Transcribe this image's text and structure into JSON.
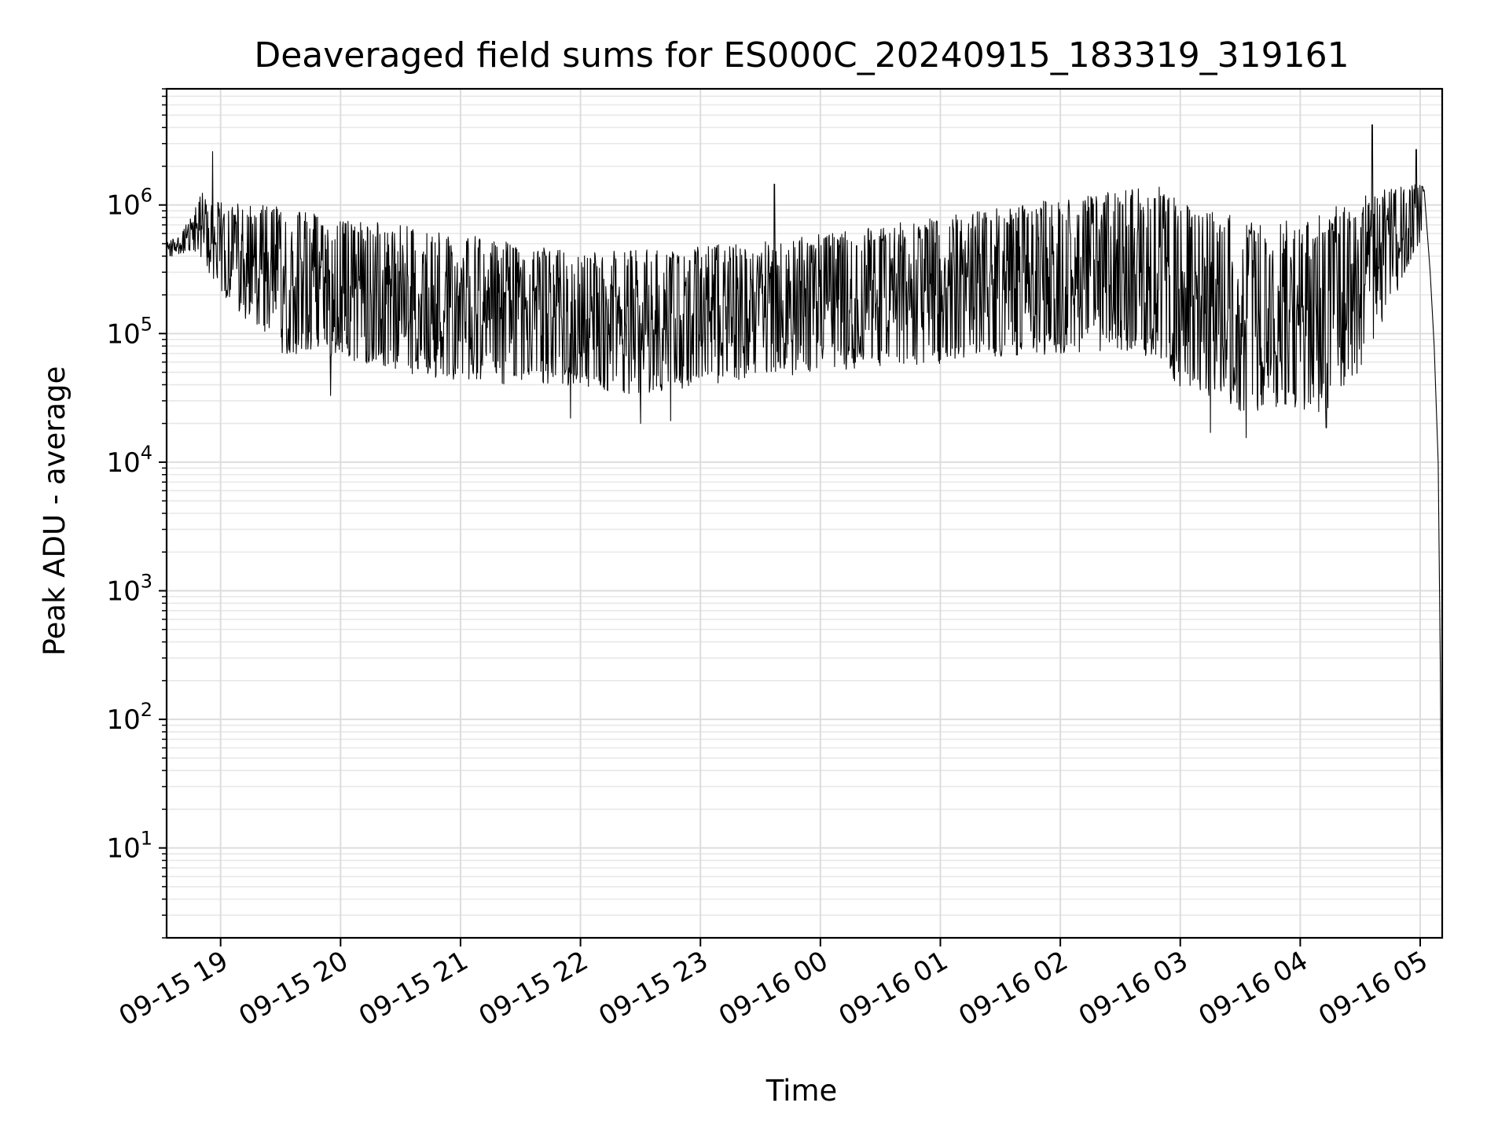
{
  "chart_data": {
    "type": "line",
    "title": "Deaveraged field sums for ES000C_20240915_183319_319161",
    "xlabel": "Time",
    "ylabel": "Peak ADU - average",
    "x_scale": "time",
    "y_scale": "log",
    "xlim": [
      "2024-09-15 18:33",
      "2024-09-16 05:11"
    ],
    "ylim": [
      2,
      8000000
    ],
    "grid": true,
    "line_color": "#000000",
    "x_ticks": [
      {
        "time": "2024-09-15 19:00",
        "label": "09-15 19"
      },
      {
        "time": "2024-09-15 20:00",
        "label": "09-15 20"
      },
      {
        "time": "2024-09-15 21:00",
        "label": "09-15 21"
      },
      {
        "time": "2024-09-15 22:00",
        "label": "09-15 22"
      },
      {
        "time": "2024-09-15 23:00",
        "label": "09-15 23"
      },
      {
        "time": "2024-09-16 00:00",
        "label": "09-16 00"
      },
      {
        "time": "2024-09-16 01:00",
        "label": "09-16 01"
      },
      {
        "time": "2024-09-16 02:00",
        "label": "09-16 02"
      },
      {
        "time": "2024-09-16 03:00",
        "label": "09-16 03"
      },
      {
        "time": "2024-09-16 04:00",
        "label": "09-16 04"
      },
      {
        "time": "2024-09-16 05:00",
        "label": "09-16 05"
      }
    ],
    "y_ticks": [
      {
        "value": 10,
        "base": "10",
        "exp": "1"
      },
      {
        "value": 100,
        "base": "10",
        "exp": "2"
      },
      {
        "value": 1000,
        "base": "10",
        "exp": "3"
      },
      {
        "value": 10000,
        "base": "10",
        "exp": "4"
      },
      {
        "value": 100000,
        "base": "10",
        "exp": "5"
      },
      {
        "value": 1000000,
        "base": "10",
        "exp": "6"
      }
    ],
    "series": [
      {
        "upper_envelope": [
          [
            "2024-09-15 18:33",
            520000
          ],
          [
            "2024-09-15 18:40",
            600000
          ],
          [
            "2024-09-15 18:47",
            900000
          ],
          [
            "2024-09-15 18:50",
            1300000
          ],
          [
            "2024-09-15 19:00",
            1050000
          ],
          [
            "2024-09-15 19:30",
            1000000
          ],
          [
            "2024-09-15 20:00",
            800000
          ],
          [
            "2024-09-15 20:30",
            700000
          ],
          [
            "2024-09-15 21:00",
            600000
          ],
          [
            "2024-09-15 21:30",
            500000
          ],
          [
            "2024-09-15 22:00",
            420000
          ],
          [
            "2024-09-15 22:30",
            450000
          ],
          [
            "2024-09-15 23:00",
            480000
          ],
          [
            "2024-09-15 23:30",
            520000
          ],
          [
            "2024-09-16 00:00",
            600000
          ],
          [
            "2024-09-16 00:30",
            700000
          ],
          [
            "2024-09-16 01:00",
            800000
          ],
          [
            "2024-09-16 01:30",
            950000
          ],
          [
            "2024-09-16 02:00",
            1150000
          ],
          [
            "2024-09-16 02:30",
            1350000
          ],
          [
            "2024-09-16 02:50",
            1400000
          ],
          [
            "2024-09-16 03:00",
            1050000
          ],
          [
            "2024-09-16 03:30",
            800000
          ],
          [
            "2024-09-16 04:00",
            750000
          ],
          [
            "2024-09-16 04:20",
            1000000
          ],
          [
            "2024-09-16 04:40",
            1300000
          ],
          [
            "2024-09-16 05:00",
            1500000
          ],
          [
            "2024-09-16 05:02",
            1350000
          ]
        ],
        "lower_envelope": [
          [
            "2024-09-15 18:33",
            380000
          ],
          [
            "2024-09-15 18:40",
            420000
          ],
          [
            "2024-09-15 18:47",
            420000
          ],
          [
            "2024-09-15 18:50",
            380000
          ],
          [
            "2024-09-15 19:00",
            200000
          ],
          [
            "2024-09-15 19:30",
            70000
          ],
          [
            "2024-09-15 20:00",
            65000
          ],
          [
            "2024-09-15 20:30",
            50000
          ],
          [
            "2024-09-15 21:00",
            42000
          ],
          [
            "2024-09-15 21:30",
            40000
          ],
          [
            "2024-09-15 22:00",
            38000
          ],
          [
            "2024-09-15 22:30",
            33000
          ],
          [
            "2024-09-15 23:00",
            38000
          ],
          [
            "2024-09-15 23:30",
            45000
          ],
          [
            "2024-09-16 00:00",
            50000
          ],
          [
            "2024-09-16 00:30",
            55000
          ],
          [
            "2024-09-16 01:00",
            58000
          ],
          [
            "2024-09-16 01:30",
            65000
          ],
          [
            "2024-09-16 02:00",
            70000
          ],
          [
            "2024-09-16 02:30",
            75000
          ],
          [
            "2024-09-16 02:50",
            60000
          ],
          [
            "2024-09-16 03:00",
            35000
          ],
          [
            "2024-09-16 03:30",
            25000
          ],
          [
            "2024-09-16 04:00",
            23000
          ],
          [
            "2024-09-16 04:20",
            26000
          ],
          [
            "2024-09-16 04:40",
            110000
          ],
          [
            "2024-09-16 05:00",
            500000
          ],
          [
            "2024-09-16 05:02",
            800000
          ]
        ],
        "spikes": [
          [
            "2024-09-15 18:56",
            2600000
          ],
          [
            "2024-09-15 19:55",
            33000
          ],
          [
            "2024-09-15 21:55",
            22000
          ],
          [
            "2024-09-15 22:30",
            20000
          ],
          [
            "2024-09-15 22:45",
            21000
          ],
          [
            "2024-09-15 23:37",
            1450000
          ],
          [
            "2024-09-16 03:15",
            17000
          ],
          [
            "2024-09-16 03:33",
            15500
          ],
          [
            "2024-09-16 04:13",
            18500
          ],
          [
            "2024-09-16 04:36",
            4200000
          ],
          [
            "2024-09-16 04:58",
            2700000
          ]
        ],
        "tail": [
          [
            "2024-09-16 05:02",
            1300000
          ],
          [
            "2024-09-16 05:05",
            300000
          ],
          [
            "2024-09-16 05:07",
            80000
          ],
          [
            "2024-09-16 05:09",
            10000
          ],
          [
            "2024-09-16 05:10",
            300
          ],
          [
            "2024-09-16 05:11",
            3.8
          ]
        ]
      }
    ]
  }
}
